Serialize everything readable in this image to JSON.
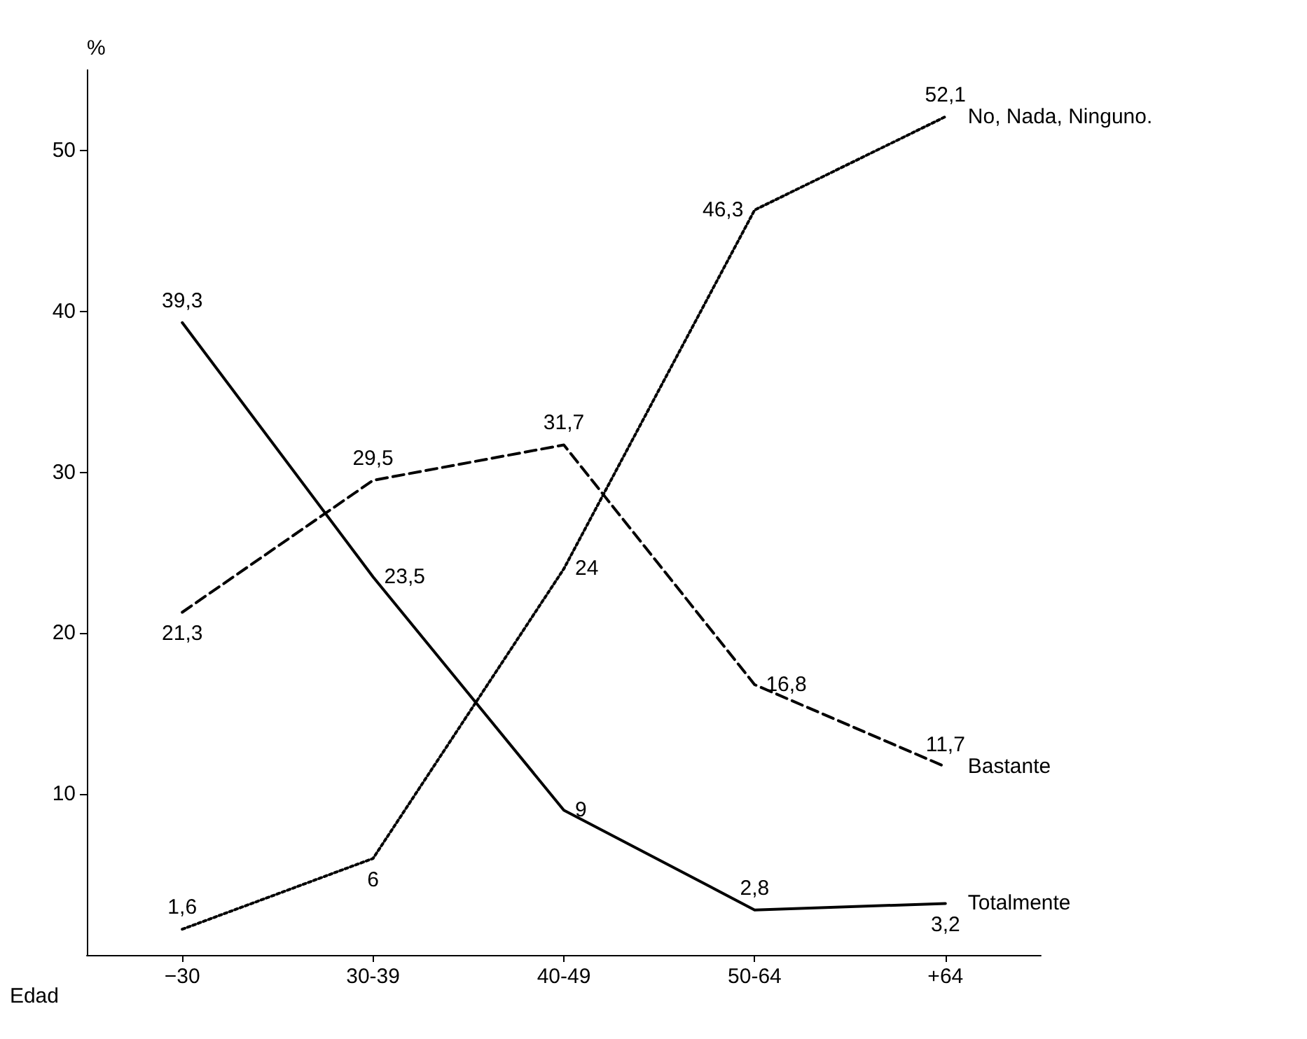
{
  "chart_data": {
    "type": "line",
    "ylabel": "%",
    "xlabel": "Edad",
    "categories": [
      "−30",
      "30-39",
      "40-49",
      "50-64",
      "+64"
    ],
    "series": [
      {
        "name": "Totalmente",
        "color": "#000000",
        "line_style": "solid",
        "values": [
          39.3,
          23.5,
          9,
          2.8,
          3.2
        ],
        "value_labels": [
          "39,3",
          "23,5",
          "9",
          "2,8",
          "3,2"
        ]
      },
      {
        "name": "Bastante",
        "color": "#000000",
        "line_style": "dashed",
        "values": [
          21.3,
          29.5,
          31.7,
          16.8,
          11.7
        ],
        "value_labels": [
          "21,3",
          "29,5",
          "31,7",
          "16,8",
          "11,7"
        ]
      },
      {
        "name": "No, Nada, Ninguno.",
        "color": "#000000",
        "line_style": "dotted",
        "values": [
          1.6,
          6,
          24,
          46.3,
          52.1
        ],
        "value_labels": [
          "1,6",
          "6",
          "24",
          "46,3",
          "52,1"
        ]
      }
    ],
    "ylim": [
      0,
      55
    ],
    "yticks": [
      10,
      20,
      30,
      40,
      50
    ],
    "grid": false,
    "legend": false,
    "marker": "none"
  }
}
